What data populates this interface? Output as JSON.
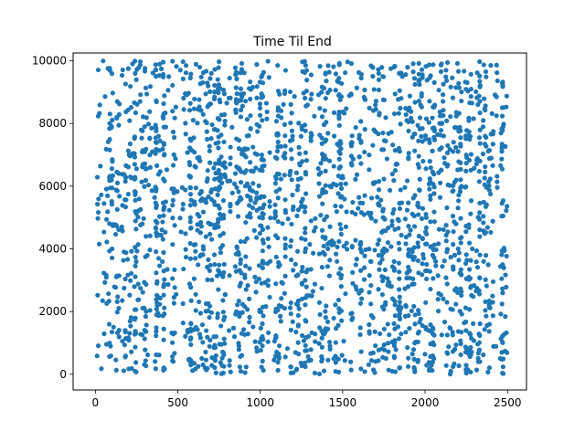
{
  "chart_data": {
    "type": "scatter",
    "title": "Time Til End",
    "xlabel": "",
    "ylabel": "",
    "xlim": [
      -135,
      2615
    ],
    "ylim": [
      -500,
      10250
    ],
    "xticks": [
      0,
      500,
      1000,
      1500,
      2000,
      2500
    ],
    "yticks": [
      0,
      2000,
      4000,
      6000,
      8000,
      10000
    ],
    "x_tick_labels": [
      "0",
      "500",
      "1000",
      "1500",
      "2000",
      "2500"
    ],
    "y_tick_labels": [
      "0",
      "2000",
      "4000",
      "6000",
      "8000",
      "10000"
    ],
    "grid": false,
    "legend": "none",
    "point_color": "#1f77b4",
    "sampling": {
      "description_note": "dense uniform cloud of points arranged in vertical streaks",
      "x_range": [
        0,
        2500
      ],
      "y_range": [
        0,
        10000
      ],
      "approx_point_count": 2400
    }
  }
}
